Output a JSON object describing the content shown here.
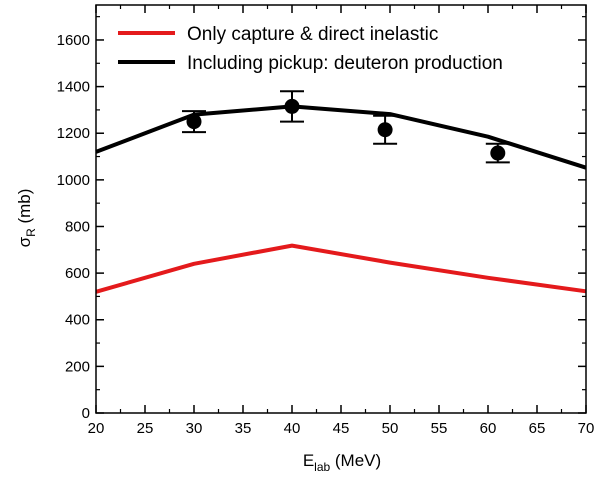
{
  "chart_data": {
    "type": "line",
    "title": "",
    "xlabel": {
      "main": "E",
      "sub": "lab",
      "unit": " (MeV)"
    },
    "ylabel": {
      "main": "σ",
      "sub": "R",
      "unit": " (mb)"
    },
    "xlim": [
      20,
      70
    ],
    "ylim": [
      0,
      1750
    ],
    "x_ticks": [
      "20",
      "25",
      "30",
      "35",
      "40",
      "45",
      "50",
      "55",
      "60",
      "65",
      "70"
    ],
    "y_ticks": [
      "0",
      "200",
      "400",
      "600",
      "800",
      "1000",
      "1200",
      "1400",
      "1600"
    ],
    "grid": false,
    "legend_position": "top-left",
    "series": [
      {
        "name": "Only capture & direct inelastic",
        "color": "#e41a1c",
        "x": [
          20,
          30,
          40,
          50,
          60,
          70
        ],
        "y": [
          520,
          640,
          718,
          645,
          580,
          522
        ]
      },
      {
        "name": "Including pickup: deuteron production",
        "color": "#000000",
        "x": [
          20,
          30,
          40,
          50,
          60,
          70
        ],
        "y": [
          1120,
          1280,
          1315,
          1282,
          1185,
          1052
        ]
      }
    ],
    "experimental_points": {
      "color": "#000000",
      "x": [
        30,
        40,
        49.5,
        61
      ],
      "y": [
        1250,
        1315,
        1215,
        1115
      ],
      "yerr": [
        45,
        65,
        60,
        40
      ]
    }
  }
}
